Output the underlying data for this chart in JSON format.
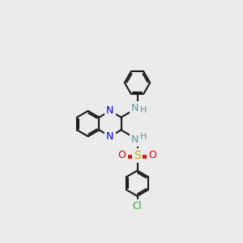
{
  "bg": "#ebebeb",
  "bond_color": "#1a1a1a",
  "N_color": "#0000dd",
  "NH_color": "#5a9a9a",
  "S_color": "#bbaa00",
  "O_color": "#dd0000",
  "Cl_color": "#33aa33",
  "bond_lw": 1.5,
  "ring_r": 0.68,
  "figsize": [
    3.0,
    3.0
  ],
  "dpi": 100,
  "xlim": [
    0,
    10
  ],
  "ylim": [
    0,
    10
  ]
}
